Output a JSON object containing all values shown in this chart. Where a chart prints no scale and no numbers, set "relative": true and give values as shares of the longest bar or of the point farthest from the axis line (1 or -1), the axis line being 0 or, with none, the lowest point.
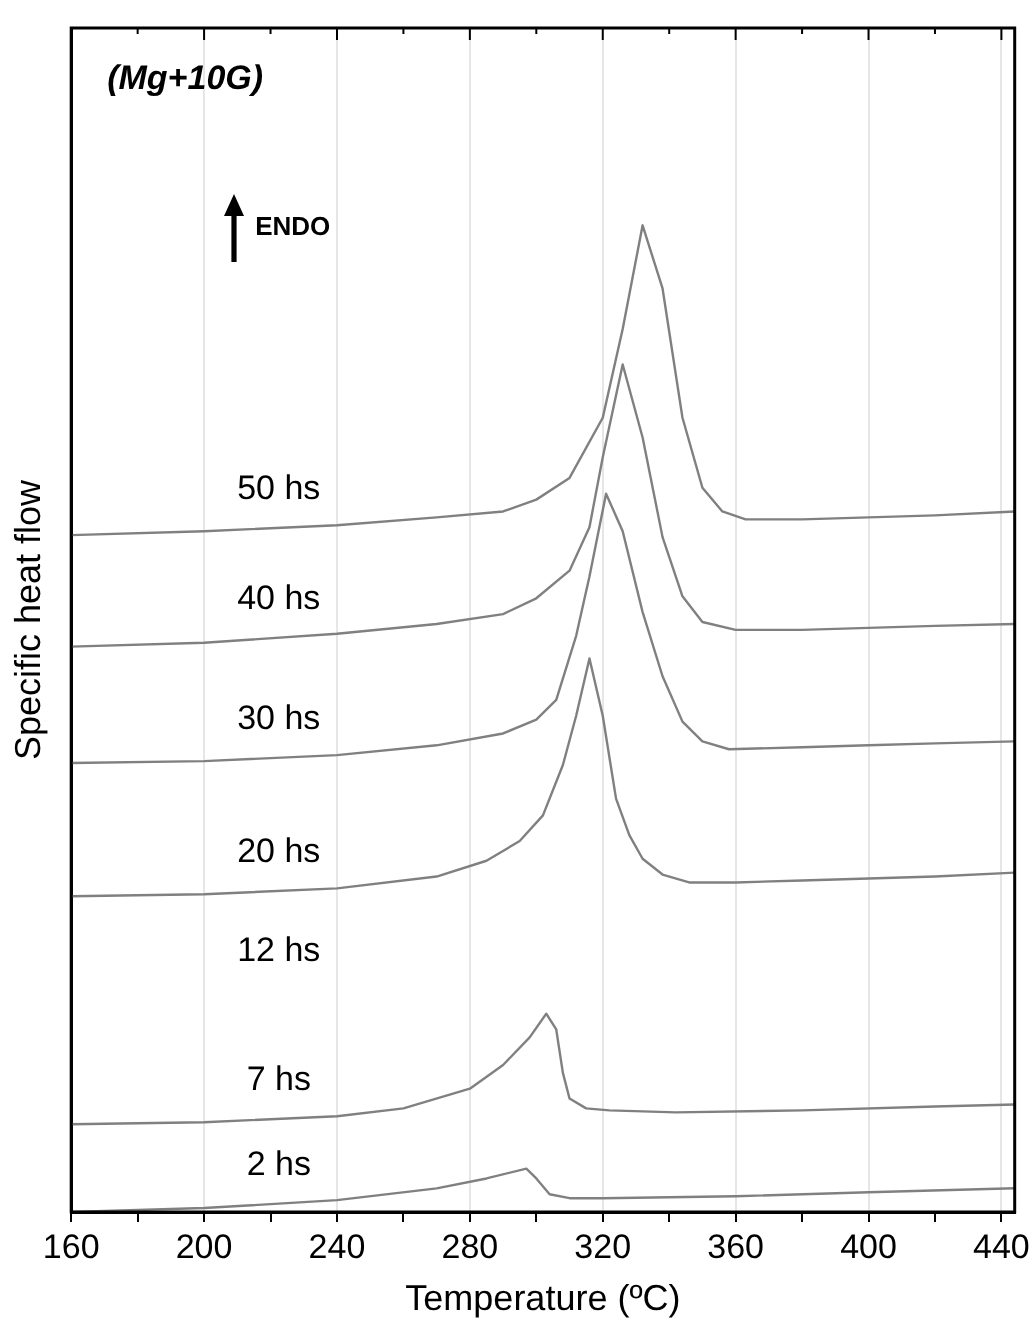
{
  "chart_data": {
    "type": "line",
    "relative": true,
    "xlabel": "Temperature (ºC)",
    "ylabel": "Specific heat flow",
    "xlim": [
      160,
      444
    ],
    "xticks": [
      160,
      {
        "value": 180,
        "label": null
      },
      200,
      {
        "value": 220,
        "label": null
      },
      240,
      {
        "value": 260,
        "label": null
      },
      280,
      {
        "value": 300,
        "label": null
      },
      320,
      {
        "value": 340,
        "label": null
      },
      360,
      {
        "value": 380,
        "label": null
      },
      400,
      {
        "value": 420,
        "label": null
      },
      440
    ],
    "grid": "x",
    "legend": false,
    "marker": "none",
    "line_style": "solid",
    "annotations": [
      "(Mg+10G)",
      "ENDO",
      "12 hs"
    ],
    "series": [
      {
        "name": "50 hs",
        "color": "#808080",
        "x": [
          160,
          200,
          240,
          270,
          290,
          300,
          310,
          320,
          326,
          332,
          338,
          344,
          350,
          356,
          363,
          380,
          400,
          420,
          444
        ],
        "values": [
          0.686,
          0.69,
          0.696,
          0.704,
          0.71,
          0.722,
          0.744,
          0.805,
          0.895,
          1,
          0.936,
          0.805,
          0.734,
          0.71,
          0.702,
          0.702,
          0.704,
          0.706,
          0.71
        ]
      },
      {
        "name": "40 hs",
        "color": "#808080",
        "x": [
          160,
          200,
          240,
          270,
          290,
          300,
          310,
          316,
          320,
          326,
          332,
          338,
          344,
          350,
          360,
          380,
          400,
          420,
          444
        ],
        "values": [
          0.573,
          0.577,
          0.586,
          0.596,
          0.606,
          0.622,
          0.65,
          0.694,
          0.765,
          0.859,
          0.785,
          0.684,
          0.624,
          0.598,
          0.59,
          0.59,
          0.592,
          0.594,
          0.596
        ]
      },
      {
        "name": "30 hs",
        "color": "#808080",
        "x": [
          160,
          200,
          240,
          270,
          290,
          300,
          306,
          312,
          316,
          321,
          326,
          332,
          338,
          344,
          350,
          358,
          380,
          400,
          420,
          444
        ],
        "values": [
          0.455,
          0.457,
          0.463,
          0.473,
          0.485,
          0.499,
          0.519,
          0.584,
          0.644,
          0.728,
          0.69,
          0.608,
          0.543,
          0.497,
          0.477,
          0.469,
          0.471,
          0.473,
          0.475,
          0.477
        ]
      },
      {
        "name": "20 hs",
        "color": "#808080",
        "x": [
          160,
          200,
          240,
          270,
          285,
          295,
          302,
          308,
          312,
          316,
          320,
          324,
          328,
          332,
          338,
          346,
          360,
          380,
          400,
          420,
          444
        ],
        "values": [
          0.32,
          0.322,
          0.328,
          0.34,
          0.356,
          0.376,
          0.402,
          0.453,
          0.503,
          0.561,
          0.503,
          0.419,
          0.382,
          0.358,
          0.342,
          0.334,
          0.334,
          0.336,
          0.338,
          0.34,
          0.344
        ]
      },
      {
        "name": "7 hs",
        "color": "#808080",
        "x": [
          160,
          200,
          240,
          260,
          280,
          290,
          298,
          303,
          306,
          308,
          310,
          315,
          322,
          342,
          380,
          420,
          444
        ],
        "values": [
          0.089,
          0.091,
          0.097,
          0.105,
          0.125,
          0.149,
          0.177,
          0.201,
          0.185,
          0.141,
          0.115,
          0.105,
          0.103,
          0.101,
          0.103,
          0.107,
          0.109
        ]
      },
      {
        "name": "2 hs",
        "color": "#808080",
        "x": [
          160,
          200,
          240,
          270,
          285,
          297,
          300,
          304,
          310,
          320,
          360,
          400,
          444
        ],
        "values": [
          0,
          0.004,
          0.012,
          0.024,
          0.034,
          0.044,
          0.034,
          0.018,
          0.014,
          0.014,
          0.016,
          0.02,
          0.024
        ]
      }
    ]
  }
}
